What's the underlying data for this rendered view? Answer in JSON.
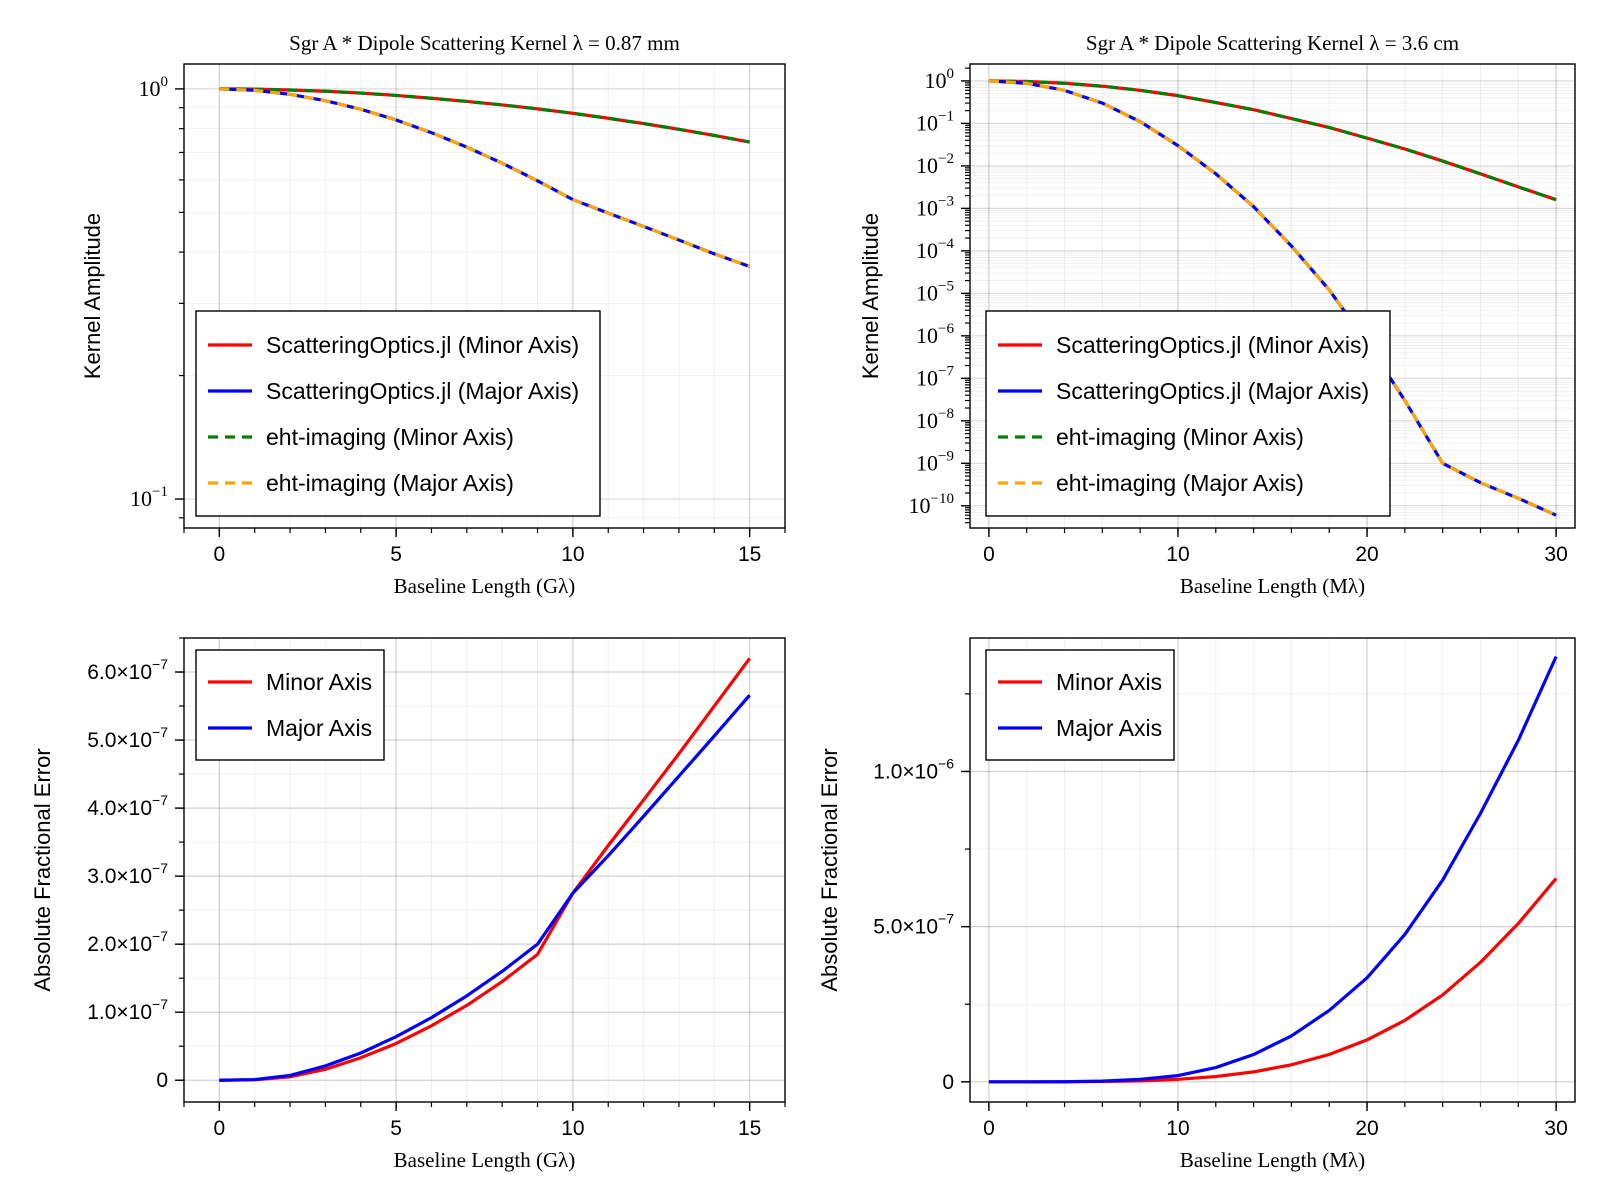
{
  "chart_data": [
    {
      "id": "p1",
      "type": "line",
      "title": "Sgr A *  Dipole Scattering Kernel λ = 0.87 mm",
      "xlabel": "Baseline Length (Gλ)",
      "ylabel": "Kernel Amplitude",
      "xlim": [
        -1,
        16
      ],
      "ylim": [
        0.085,
        1.15
      ],
      "yscale": "log",
      "xticks": [
        0,
        5,
        10,
        15
      ],
      "xtick_labels": [
        "0",
        "5",
        "10",
        "15"
      ],
      "yticks": [
        1,
        0.1
      ],
      "ytick_labels": [
        {
          "base": "10",
          "exp": "0"
        },
        {
          "base": "10",
          "exp": "−1"
        }
      ],
      "grid": true,
      "legend_position": "bottom-left",
      "series": [
        {
          "name": "ScatteringOptics.jl (Minor Axis)",
          "color": "#ff0000",
          "style": "solid",
          "x": [
            0,
            1,
            2,
            3,
            4,
            5,
            6,
            7,
            8,
            9,
            10,
            11,
            12,
            13,
            14,
            15
          ],
          "y": [
            1.0,
            0.9985,
            0.994,
            0.987,
            0.977,
            0.964,
            0.949,
            0.932,
            0.914,
            0.894,
            0.872,
            0.848,
            0.823,
            0.797,
            0.77,
            0.742
          ]
        },
        {
          "name": "ScatteringOptics.jl (Major Axis)",
          "color": "#0000ff",
          "style": "solid",
          "x": [
            0,
            1,
            2,
            3,
            4,
            5,
            6,
            7,
            8,
            9,
            10,
            11,
            12,
            13,
            14,
            15
          ],
          "y": [
            1.0,
            0.992,
            0.97,
            0.936,
            0.892,
            0.84,
            0.782,
            0.721,
            0.659,
            0.597,
            0.537,
            0.498,
            0.462,
            0.428,
            0.396,
            0.369
          ]
        },
        {
          "name": "eht-imaging (Minor Axis)",
          "color": "#008000",
          "style": "dashed",
          "x": [
            0,
            1,
            2,
            3,
            4,
            5,
            6,
            7,
            8,
            9,
            10,
            11,
            12,
            13,
            14,
            15
          ],
          "y": [
            1.0,
            0.9985,
            0.994,
            0.987,
            0.977,
            0.964,
            0.949,
            0.932,
            0.914,
            0.894,
            0.872,
            0.848,
            0.823,
            0.797,
            0.77,
            0.742
          ]
        },
        {
          "name": "eht-imaging (Major Axis)",
          "color": "#ffa500",
          "style": "dashed",
          "x": [
            0,
            1,
            2,
            3,
            4,
            5,
            6,
            7,
            8,
            9,
            10,
            11,
            12,
            13,
            14,
            15
          ],
          "y": [
            1.0,
            0.992,
            0.97,
            0.936,
            0.892,
            0.84,
            0.782,
            0.721,
            0.659,
            0.597,
            0.537,
            0.498,
            0.462,
            0.428,
            0.396,
            0.369
          ]
        }
      ]
    },
    {
      "id": "p2",
      "type": "line",
      "title": "Sgr A *  Dipole Scattering Kernel λ = 3.6 cm",
      "xlabel": "Baseline Length (Mλ)",
      "ylabel": "Kernel Amplitude",
      "xlim": [
        -1,
        31
      ],
      "ylim": [
        3e-11,
        2.5
      ],
      "yscale": "log",
      "xticks": [
        0,
        10,
        20,
        30
      ],
      "xtick_labels": [
        "0",
        "10",
        "20",
        "30"
      ],
      "yticks": [
        1,
        0.1,
        0.01,
        0.001,
        0.0001,
        1e-05,
        1e-06,
        1e-07,
        1e-08,
        1e-09,
        1e-10
      ],
      "ytick_labels": [
        {
          "base": "10",
          "exp": "0"
        },
        {
          "base": "10",
          "exp": "−1"
        },
        {
          "base": "10",
          "exp": "−2"
        },
        {
          "base": "10",
          "exp": "−3"
        },
        {
          "base": "10",
          "exp": "−4"
        },
        {
          "base": "10",
          "exp": "−5"
        },
        {
          "base": "10",
          "exp": "−6"
        },
        {
          "base": "10",
          "exp": "−7"
        },
        {
          "base": "10",
          "exp": "−8"
        },
        {
          "base": "10",
          "exp": "−9"
        },
        {
          "base": "10",
          "exp": "−10"
        }
      ],
      "grid": true,
      "legend_position": "bottom-left",
      "series": [
        {
          "name": "ScatteringOptics.jl (Minor Axis)",
          "color": "#ff0000",
          "style": "solid",
          "x": [
            0,
            2,
            4,
            6,
            8,
            10,
            12,
            14,
            16,
            18,
            20,
            22,
            24,
            26,
            28,
            30
          ],
          "y": [
            1.0,
            0.97,
            0.88,
            0.75,
            0.6,
            0.45,
            0.31,
            0.21,
            0.13,
            0.08,
            0.045,
            0.025,
            0.013,
            0.0065,
            0.0032,
            0.0016
          ]
        },
        {
          "name": "ScatteringOptics.jl (Major Axis)",
          "color": "#0000ff",
          "style": "solid",
          "x": [
            0,
            2,
            4,
            6,
            8,
            10,
            12,
            14,
            16,
            18,
            20,
            22,
            24,
            26,
            28,
            30
          ],
          "y": [
            1.0,
            0.88,
            0.6,
            0.3,
            0.11,
            0.03,
            0.0065,
            0.0011,
            0.00013,
            1.2e-05,
            7e-07,
            3e-08,
            1e-09,
            3.5e-10,
            1.5e-10,
            6e-11
          ]
        },
        {
          "name": "eht-imaging (Minor Axis)",
          "color": "#008000",
          "style": "dashed",
          "x": [
            0,
            2,
            4,
            6,
            8,
            10,
            12,
            14,
            16,
            18,
            20,
            22,
            24,
            26,
            28,
            30
          ],
          "y": [
            1.0,
            0.97,
            0.88,
            0.75,
            0.6,
            0.45,
            0.31,
            0.21,
            0.13,
            0.08,
            0.045,
            0.025,
            0.013,
            0.0065,
            0.0032,
            0.0016
          ]
        },
        {
          "name": "eht-imaging (Major Axis)",
          "color": "#ffa500",
          "style": "dashed",
          "x": [
            0,
            2,
            4,
            6,
            8,
            10,
            12,
            14,
            16,
            18,
            20,
            22,
            24,
            26,
            28,
            30
          ],
          "y": [
            1.0,
            0.88,
            0.6,
            0.3,
            0.11,
            0.03,
            0.0065,
            0.0011,
            0.00013,
            1.2e-05,
            7e-07,
            3e-08,
            1e-09,
            3.5e-10,
            1.5e-10,
            6e-11
          ]
        }
      ]
    },
    {
      "id": "p3",
      "type": "line",
      "title": "",
      "xlabel": "Baseline Length (Gλ)",
      "ylabel": "Absolute Fractional Error",
      "xlim": [
        -1,
        16
      ],
      "ylim": [
        -3.2e-08,
        6.5e-07
      ],
      "yscale": "linear",
      "xticks": [
        0,
        5,
        10,
        15
      ],
      "xtick_labels": [
        "0",
        "5",
        "10",
        "15"
      ],
      "yticks": [
        0,
        1e-07,
        2e-07,
        3e-07,
        4e-07,
        5e-07,
        6e-07
      ],
      "ytick_labels": [
        {
          "base": "0",
          "exp": ""
        },
        {
          "base": "1.0×10",
          "exp": "−7"
        },
        {
          "base": "2.0×10",
          "exp": "−7"
        },
        {
          "base": "3.0×10",
          "exp": "−7"
        },
        {
          "base": "4.0×10",
          "exp": "−7"
        },
        {
          "base": "5.0×10",
          "exp": "−7"
        },
        {
          "base": "6.0×10",
          "exp": "−7"
        }
      ],
      "grid": true,
      "legend_position": "top-left",
      "series": [
        {
          "name": "Minor Axis",
          "color": "#ff0000",
          "style": "solid",
          "x": [
            0,
            1,
            2,
            3,
            4,
            5,
            6,
            7,
            8,
            9,
            10,
            11,
            12,
            13,
            14,
            15
          ],
          "y": [
            0,
            6e-10,
            5e-09,
            1.6e-08,
            3.3e-08,
            5.4e-08,
            8e-08,
            1.1e-07,
            1.45e-07,
            1.85e-07,
            2.75e-07,
            3.45e-07,
            4.12e-07,
            4.8e-07,
            5.5e-07,
            6.2e-07
          ]
        },
        {
          "name": "Major Axis",
          "color": "#0000ff",
          "style": "solid",
          "x": [
            0,
            1,
            2,
            3,
            4,
            5,
            6,
            7,
            8,
            9,
            10,
            11,
            12,
            13,
            14,
            15
          ],
          "y": [
            0,
            1e-09,
            7e-09,
            2.1e-08,
            4e-08,
            6.4e-08,
            9.2e-08,
            1.24e-07,
            1.6e-07,
            2e-07,
            2.75e-07,
            3.3e-07,
            3.88e-07,
            4.47e-07,
            5.06e-07,
            5.66e-07
          ]
        }
      ]
    },
    {
      "id": "p4",
      "type": "line",
      "title": "",
      "xlabel": "Baseline Length (Mλ)",
      "ylabel": "Absolute Fractional Error",
      "xlim": [
        -1,
        31
      ],
      "ylim": [
        -6.5e-08,
        1.43e-06
      ],
      "yscale": "linear",
      "xticks": [
        0,
        10,
        20,
        30
      ],
      "xtick_labels": [
        "0",
        "10",
        "20",
        "30"
      ],
      "yticks": [
        0,
        5e-07,
        1e-06
      ],
      "ytick_labels": [
        {
          "base": "0",
          "exp": ""
        },
        {
          "base": "5.0×10",
          "exp": "−7"
        },
        {
          "base": "1.0×10",
          "exp": "−6"
        }
      ],
      "grid": true,
      "legend_position": "top-left",
      "series": [
        {
          "name": "Minor Axis",
          "color": "#ff0000",
          "style": "solid",
          "x": [
            0,
            2,
            4,
            6,
            8,
            10,
            12,
            14,
            16,
            18,
            20,
            22,
            24,
            26,
            28,
            30
          ],
          "y": [
            0,
            0,
            1e-10,
            1e-09,
            3e-09,
            8e-09,
            1.7e-08,
            3.2e-08,
            5.5e-08,
            8.8e-08,
            1.35e-07,
            1.98e-07,
            2.8e-07,
            3.85e-07,
            5.1e-07,
            6.55e-07
          ]
        },
        {
          "name": "Major Axis",
          "color": "#0000ff",
          "style": "solid",
          "x": [
            0,
            2,
            4,
            6,
            8,
            10,
            12,
            14,
            16,
            18,
            20,
            22,
            24,
            26,
            28,
            30
          ],
          "y": [
            0,
            0,
            3e-10,
            2.5e-09,
            8e-09,
            2e-08,
            4.6e-08,
            8.8e-08,
            1.48e-07,
            2.3e-07,
            3.35e-07,
            4.75e-07,
            6.5e-07,
            8.65e-07,
            1.1e-06,
            1.37e-06
          ]
        }
      ]
    }
  ]
}
